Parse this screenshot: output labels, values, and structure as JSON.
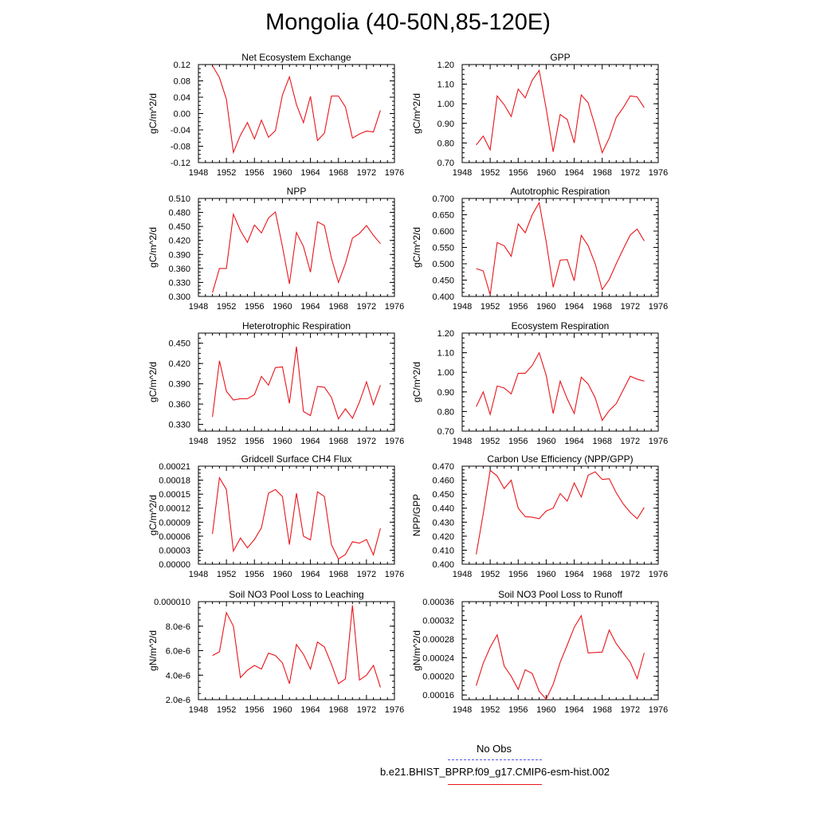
{
  "title": "Mongolia (40-50N,85-120E)",
  "legend": {
    "obs_label": "No Obs",
    "obs_color": "#5555dd",
    "model_label": "b.e21.BHIST_BPRP.f09_g17.CMIP6-esm-hist.002",
    "model_color": "#e8151b"
  },
  "chart_data": [
    {
      "type": "line",
      "title": "Net Ecosystem Exchange",
      "ylabel": "gC/m^2/d",
      "xlim": [
        1948,
        1976
      ],
      "ylim": [
        -0.12,
        0.12
      ],
      "xticks": [
        "1948",
        "1952",
        "1956",
        "1960",
        "1964",
        "1968",
        "1972",
        "1976"
      ],
      "yticks": [
        "-0.12",
        "-0.08",
        "-0.04",
        "0.00",
        "0.04",
        "0.08",
        "0.12"
      ],
      "x": [
        1950,
        1951,
        1952,
        1953,
        1954,
        1955,
        1956,
        1957,
        1958,
        1959,
        1960,
        1961,
        1962,
        1963,
        1964,
        1965,
        1966,
        1967,
        1968,
        1969,
        1970,
        1971,
        1972,
        1973,
        1974
      ],
      "series": [
        {
          "values": [
            0.117,
            0.088,
            0.035,
            -0.095,
            -0.053,
            -0.022,
            -0.062,
            -0.016,
            -0.058,
            -0.042,
            0.045,
            0.09,
            0.022,
            -0.022,
            0.042,
            -0.066,
            -0.048,
            0.043,
            0.043,
            0.016,
            -0.06,
            -0.05,
            -0.043,
            -0.045,
            0.008
          ],
          "color": "#e8151b"
        }
      ]
    },
    {
      "type": "line",
      "title": "GPP",
      "ylabel": "gC/m^2/d",
      "xlim": [
        1948,
        1976
      ],
      "ylim": [
        0.7,
        1.2
      ],
      "xticks": [
        "1948",
        "1952",
        "1956",
        "1960",
        "1964",
        "1968",
        "1972",
        "1976"
      ],
      "yticks": [
        "0.70",
        "0.80",
        "0.90",
        "1.00",
        "1.10",
        "1.20"
      ],
      "x": [
        1950,
        1951,
        1952,
        1953,
        1954,
        1955,
        1956,
        1957,
        1958,
        1959,
        1960,
        1961,
        1962,
        1963,
        1964,
        1965,
        1966,
        1967,
        1968,
        1969,
        1970,
        1971,
        1972,
        1973,
        1974
      ],
      "series": [
        {
          "values": [
            0.79,
            0.835,
            0.765,
            1.04,
            0.995,
            0.935,
            1.075,
            1.03,
            1.12,
            1.17,
            0.975,
            0.755,
            0.945,
            0.92,
            0.8,
            1.045,
            1.005,
            0.885,
            0.75,
            0.825,
            0.93,
            0.98,
            1.04,
            1.035,
            0.98
          ],
          "color": "#e8151b"
        }
      ]
    },
    {
      "type": "line",
      "title": "NPP",
      "ylabel": "gC/m^2/d",
      "xlim": [
        1948,
        1976
      ],
      "ylim": [
        0.3,
        0.51
      ],
      "xticks": [
        "1948",
        "1952",
        "1956",
        "1960",
        "1964",
        "1968",
        "1972",
        "1976"
      ],
      "yticks": [
        "0.300",
        "0.330",
        "0.360",
        "0.390",
        "0.420",
        "0.450",
        "0.480",
        "0.510"
      ],
      "x": [
        1950,
        1951,
        1952,
        1953,
        1954,
        1955,
        1956,
        1957,
        1958,
        1959,
        1960,
        1961,
        1962,
        1963,
        1964,
        1965,
        1966,
        1967,
        1968,
        1969,
        1970,
        1971,
        1972,
        1973,
        1974
      ],
      "series": [
        {
          "values": [
            0.308,
            0.36,
            0.36,
            0.476,
            0.441,
            0.416,
            0.453,
            0.436,
            0.468,
            0.481,
            0.407,
            0.327,
            0.437,
            0.407,
            0.352,
            0.46,
            0.452,
            0.382,
            0.33,
            0.371,
            0.425,
            0.435,
            0.452,
            0.431,
            0.413
          ],
          "color": "#e8151b"
        }
      ]
    },
    {
      "type": "line",
      "title": "Autotrophic Respiration",
      "ylabel": "gC/m^2/d",
      "xlim": [
        1948,
        1976
      ],
      "ylim": [
        0.4,
        0.7
      ],
      "xticks": [
        "1948",
        "1952",
        "1956",
        "1960",
        "1964",
        "1968",
        "1972",
        "1976"
      ],
      "yticks": [
        "0.400",
        "0.450",
        "0.500",
        "0.550",
        "0.600",
        "0.650",
        "0.700"
      ],
      "x": [
        1950,
        1951,
        1952,
        1953,
        1954,
        1955,
        1956,
        1957,
        1958,
        1959,
        1960,
        1961,
        1962,
        1963,
        1964,
        1965,
        1966,
        1967,
        1968,
        1969,
        1970,
        1971,
        1972,
        1973,
        1974
      ],
      "series": [
        {
          "values": [
            0.485,
            0.478,
            0.405,
            0.565,
            0.555,
            0.523,
            0.622,
            0.595,
            0.65,
            0.687,
            0.568,
            0.428,
            0.511,
            0.513,
            0.448,
            0.587,
            0.555,
            0.5,
            0.421,
            0.452,
            0.5,
            0.545,
            0.588,
            0.606,
            0.57
          ],
          "color": "#e8151b"
        }
      ]
    },
    {
      "type": "line",
      "title": "Heterotrophic Respiration",
      "ylabel": "gC/m^2/d",
      "xlim": [
        1948,
        1976
      ],
      "ylim": [
        0.32,
        0.465
      ],
      "xticks": [
        "1948",
        "1952",
        "1956",
        "1960",
        "1964",
        "1968",
        "1972",
        "1976"
      ],
      "yticks": [
        "0.330",
        "0.360",
        "0.390",
        "0.420",
        "0.450"
      ],
      "x": [
        1950,
        1951,
        1952,
        1953,
        1954,
        1955,
        1956,
        1957,
        1958,
        1959,
        1960,
        1961,
        1962,
        1963,
        1964,
        1965,
        1966,
        1967,
        1968,
        1969,
        1970,
        1971,
        1972,
        1973,
        1974
      ],
      "series": [
        {
          "values": [
            0.341,
            0.424,
            0.379,
            0.366,
            0.368,
            0.368,
            0.374,
            0.401,
            0.388,
            0.414,
            0.415,
            0.361,
            0.445,
            0.349,
            0.343,
            0.386,
            0.385,
            0.37,
            0.338,
            0.353,
            0.339,
            0.363,
            0.393,
            0.359,
            0.388
          ],
          "color": "#e8151b"
        }
      ]
    },
    {
      "type": "line",
      "title": "Ecosystem Respiration",
      "ylabel": "gC/m^2/d",
      "xlim": [
        1948,
        1976
      ],
      "ylim": [
        0.7,
        1.2
      ],
      "xticks": [
        "1948",
        "1952",
        "1956",
        "1960",
        "1964",
        "1968",
        "1972",
        "1976"
      ],
      "yticks": [
        "0.70",
        "0.80",
        "0.90",
        "1.00",
        "1.10",
        "1.20"
      ],
      "x": [
        1950,
        1951,
        1952,
        1953,
        1954,
        1955,
        1956,
        1957,
        1958,
        1959,
        1960,
        1961,
        1962,
        1963,
        1964,
        1965,
        1966,
        1967,
        1968,
        1969,
        1970,
        1971,
        1972,
        1973,
        1974
      ],
      "series": [
        {
          "values": [
            0.825,
            0.9,
            0.785,
            0.93,
            0.92,
            0.89,
            0.995,
            0.995,
            1.035,
            1.1,
            0.985,
            0.79,
            0.955,
            0.865,
            0.79,
            0.975,
            0.94,
            0.87,
            0.755,
            0.805,
            0.84,
            0.91,
            0.98,
            0.965,
            0.955
          ],
          "color": "#e8151b"
        }
      ]
    },
    {
      "type": "line",
      "title": "Gridcell Surface CH4 Flux",
      "ylabel": "gC/m^2/d",
      "xlim": [
        1948,
        1976
      ],
      "ylim": [
        0.0,
        0.00021
      ],
      "xticks": [
        "1948",
        "1952",
        "1956",
        "1960",
        "1964",
        "1968",
        "1972",
        "1976"
      ],
      "yticks": [
        "0.00000",
        "0.00003",
        "0.00006",
        "0.00009",
        "0.00012",
        "0.00015",
        "0.00018",
        "0.00021"
      ],
      "x": [
        1950,
        1951,
        1952,
        1953,
        1954,
        1955,
        1956,
        1957,
        1958,
        1959,
        1960,
        1961,
        1962,
        1963,
        1964,
        1965,
        1966,
        1967,
        1968,
        1969,
        1970,
        1971,
        1972,
        1973,
        1974
      ],
      "series": [
        {
          "values": [
            6.5e-05,
            0.000185,
            0.00016,
            2.8e-05,
            5.6e-05,
            3.5e-05,
            5.3e-05,
            7.8e-05,
            0.000152,
            0.00016,
            0.000145,
            4.2e-05,
            0.000152,
            6e-05,
            5.2e-05,
            0.000155,
            0.000145,
            4.2e-05,
            1.1e-05,
            2.1e-05,
            4.8e-05,
            4.5e-05,
            5.3e-05,
            2e-05,
            7.7e-05
          ],
          "color": "#e8151b"
        }
      ]
    },
    {
      "type": "line",
      "title": "Carbon Use Efficiency (NPP/GPP)",
      "ylabel": "NPP/GPP",
      "xlim": [
        1948,
        1976
      ],
      "ylim": [
        0.4,
        0.47
      ],
      "xticks": [
        "1948",
        "1952",
        "1956",
        "1960",
        "1964",
        "1968",
        "1972",
        "1976"
      ],
      "yticks": [
        "0.400",
        "0.410",
        "0.420",
        "0.430",
        "0.440",
        "0.450",
        "0.460",
        "0.470"
      ],
      "x": [
        1950,
        1951,
        1952,
        1953,
        1954,
        1955,
        1956,
        1957,
        1958,
        1959,
        1960,
        1961,
        1962,
        1963,
        1964,
        1965,
        1966,
        1967,
        1968,
        1969,
        1970,
        1971,
        1972,
        1973,
        1974
      ],
      "series": [
        {
          "values": [
            0.407,
            0.436,
            0.467,
            0.463,
            0.454,
            0.46,
            0.44,
            0.434,
            0.4335,
            0.4325,
            0.438,
            0.44,
            0.4505,
            0.445,
            0.458,
            0.448,
            0.4635,
            0.466,
            0.4605,
            0.461,
            0.451,
            0.443,
            0.437,
            0.4325,
            0.4405
          ],
          "color": "#e8151b"
        }
      ]
    },
    {
      "type": "line",
      "title": "Soil NO3 Pool Loss to Leaching",
      "ylabel": "gN/m^2/d",
      "xlim": [
        1948,
        1976
      ],
      "ylim": [
        2e-06,
        1e-05
      ],
      "xticks": [
        "1948",
        "1952",
        "1956",
        "1960",
        "1964",
        "1968",
        "1972",
        "1976"
      ],
      "yticks": [
        "2.0e-6",
        "4.0e-6",
        "6.0e-6",
        "8.0e-6",
        "0.000010"
      ],
      "x": [
        1950,
        1951,
        1952,
        1953,
        1954,
        1955,
        1956,
        1957,
        1958,
        1959,
        1960,
        1961,
        1962,
        1963,
        1964,
        1965,
        1966,
        1967,
        1968,
        1969,
        1970,
        1971,
        1972,
        1973,
        1974
      ],
      "series": [
        {
          "values": [
            5.6e-06,
            5.9e-06,
            9.1e-06,
            8e-06,
            3.8e-06,
            4.4e-06,
            4.8e-06,
            4.5e-06,
            5.8e-06,
            5.6e-06,
            5e-06,
            3.3e-06,
            6.5e-06,
            5.7e-06,
            4.5e-06,
            6.7e-06,
            6.3e-06,
            4.9e-06,
            3.3e-06,
            3.7e-06,
            9.7e-06,
            3.6e-06,
            4e-06,
            4.8e-06,
            3e-06
          ],
          "color": "#e8151b"
        }
      ]
    },
    {
      "type": "line",
      "title": "Soil NO3 Pool Loss to Runoff",
      "ylabel": "gN/m^2/d",
      "xlim": [
        1948,
        1976
      ],
      "ylim": [
        0.00015,
        0.00036
      ],
      "xticks": [
        "1948",
        "1952",
        "1956",
        "1960",
        "1964",
        "1968",
        "1972",
        "1976"
      ],
      "yticks": [
        "0.00016",
        "0.00020",
        "0.00024",
        "0.00028",
        "0.00032",
        "0.00036"
      ],
      "x": [
        1950,
        1951,
        1952,
        1953,
        1954,
        1955,
        1956,
        1957,
        1958,
        1959,
        1960,
        1961,
        1962,
        1963,
        1964,
        1965,
        1966,
        1967,
        1968,
        1969,
        1970,
        1971,
        1972,
        1973,
        1974
      ],
      "series": [
        {
          "values": [
            0.00018,
            0.000228,
            0.000262,
            0.000289,
            0.000222,
            0.0002,
            0.000172,
            0.000214,
            0.000206,
            0.000168,
            0.000151,
            0.000183,
            0.00023,
            0.000267,
            0.000305,
            0.00033,
            0.00025,
            0.000251,
            0.000252,
            0.000299,
            0.00027,
            0.00025,
            0.00023,
            0.000195,
            0.00025
          ],
          "color": "#e8151b"
        }
      ]
    }
  ]
}
